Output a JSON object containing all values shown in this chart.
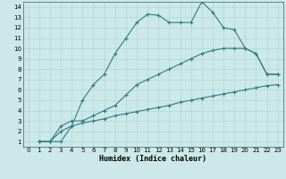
{
  "xlabel": "Humidex (Indice chaleur)",
  "ylabel": "",
  "bg_color": "#cce8e8",
  "line_color": "#2d7d7d",
  "grid_color": "#b0d8d8",
  "xlim": [
    -0.5,
    23.5
  ],
  "ylim": [
    0.5,
    14.5
  ],
  "xticks": [
    0,
    1,
    2,
    3,
    4,
    5,
    6,
    7,
    8,
    9,
    10,
    11,
    12,
    13,
    14,
    15,
    16,
    17,
    18,
    19,
    20,
    21,
    22,
    23
  ],
  "yticks": [
    1,
    2,
    3,
    4,
    5,
    6,
    7,
    8,
    9,
    10,
    11,
    12,
    13,
    14
  ],
  "series": [
    {
      "x": [
        1,
        2,
        3,
        4,
        5,
        6,
        7,
        8,
        9,
        10,
        11,
        12,
        13,
        14,
        15,
        16,
        17,
        18,
        19,
        20,
        21,
        22,
        23
      ],
      "y": [
        1,
        1,
        1.0,
        2.5,
        5.0,
        6.5,
        7.5,
        9.5,
        11.0,
        12.5,
        13.3,
        13.2,
        12.5,
        12.5,
        12.5,
        14.5,
        13.5,
        12.0,
        11.8,
        10.0,
        9.5,
        7.5,
        7.5
      ]
    },
    {
      "x": [
        1,
        2,
        3,
        4,
        5,
        6,
        7,
        8,
        9,
        10,
        11,
        12,
        13,
        14,
        15,
        16,
        17,
        18,
        19,
        20,
        21,
        22,
        23
      ],
      "y": [
        1,
        1,
        2.5,
        3.0,
        3.0,
        3.5,
        4.0,
        4.5,
        5.5,
        6.5,
        7.0,
        7.5,
        8.0,
        8.5,
        9.0,
        9.5,
        9.8,
        10.0,
        10.0,
        10.0,
        9.5,
        7.5,
        7.5
      ]
    },
    {
      "x": [
        1,
        2,
        3,
        4,
        5,
        6,
        7,
        8,
        9,
        10,
        11,
        12,
        13,
        14,
        15,
        16,
        17,
        18,
        19,
        20,
        21,
        22,
        23
      ],
      "y": [
        1,
        1,
        2.0,
        2.5,
        2.8,
        3.0,
        3.2,
        3.5,
        3.7,
        3.9,
        4.1,
        4.3,
        4.5,
        4.8,
        5.0,
        5.2,
        5.4,
        5.6,
        5.8,
        6.0,
        6.2,
        6.4,
        6.5
      ]
    }
  ]
}
